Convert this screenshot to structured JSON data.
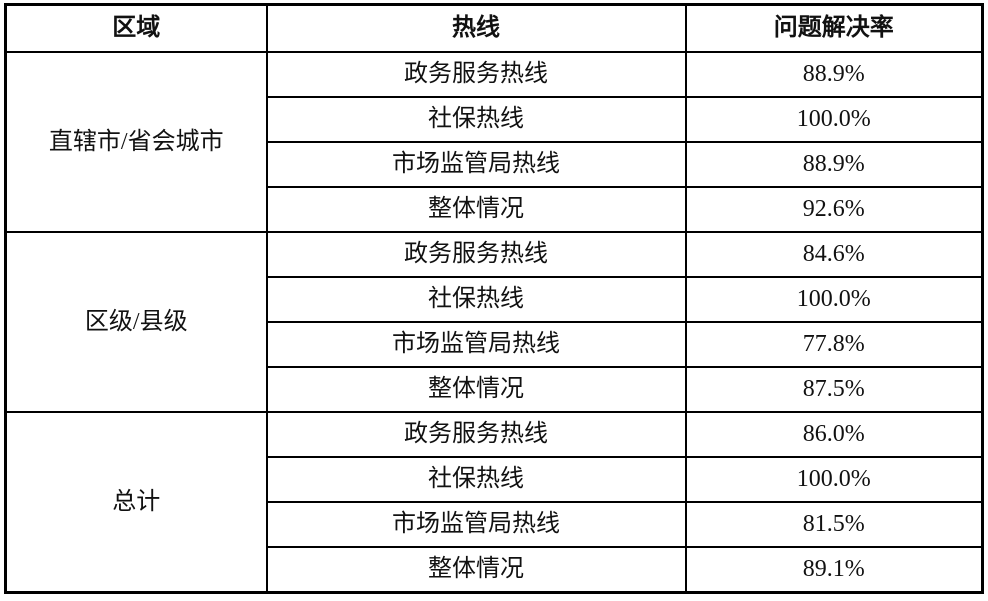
{
  "colors": {
    "border": "#000000",
    "text": "#111111",
    "background": "#ffffff"
  },
  "table": {
    "columns": {
      "region": "区域",
      "hotline": "热线",
      "rate": "问题解决率"
    },
    "groups": [
      {
        "region": "直辖市/省会城市",
        "rows": [
          {
            "hotline": "政务服务热线",
            "rate": "88.9%"
          },
          {
            "hotline": "社保热线",
            "rate": "100.0%"
          },
          {
            "hotline": "市场监管局热线",
            "rate": "88.9%"
          },
          {
            "hotline": "整体情况",
            "rate": "92.6%"
          }
        ]
      },
      {
        "region": "区级/县级",
        "rows": [
          {
            "hotline": "政务服务热线",
            "rate": "84.6%"
          },
          {
            "hotline": "社保热线",
            "rate": "100.0%"
          },
          {
            "hotline": "市场监管局热线",
            "rate": "77.8%"
          },
          {
            "hotline": "整体情况",
            "rate": "87.5%"
          }
        ]
      },
      {
        "region": "总计",
        "rows": [
          {
            "hotline": "政务服务热线",
            "rate": "86.0%"
          },
          {
            "hotline": "社保热线",
            "rate": "100.0%"
          },
          {
            "hotline": "市场监管局热线",
            "rate": "81.5%"
          },
          {
            "hotline": "整体情况",
            "rate": "89.1%"
          }
        ]
      }
    ]
  },
  "chart_data": {
    "type": "table",
    "title": "",
    "columns": [
      "区域",
      "热线",
      "问题解决率"
    ],
    "rows": [
      [
        "直辖市/省会城市",
        "政务服务热线",
        "88.9%"
      ],
      [
        "直辖市/省会城市",
        "社保热线",
        "100.0%"
      ],
      [
        "直辖市/省会城市",
        "市场监管局热线",
        "88.9%"
      ],
      [
        "直辖市/省会城市",
        "整体情况",
        "92.6%"
      ],
      [
        "区级/县级",
        "政务服务热线",
        "84.6%"
      ],
      [
        "区级/县级",
        "社保热线",
        "100.0%"
      ],
      [
        "区级/县级",
        "市场监管局热线",
        "77.8%"
      ],
      [
        "区级/县级",
        "整体情况",
        "87.5%"
      ],
      [
        "总计",
        "政务服务热线",
        "86.0%"
      ],
      [
        "总计",
        "社保热线",
        "100.0%"
      ],
      [
        "总计",
        "市场监管局热线",
        "81.5%"
      ],
      [
        "总计",
        "整体情况",
        "89.1%"
      ]
    ]
  }
}
